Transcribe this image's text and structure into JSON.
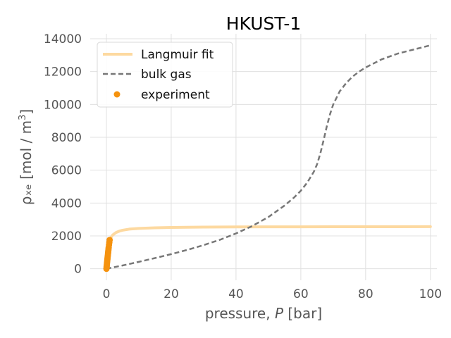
{
  "chart_data": {
    "type": "line",
    "title": "HKUST-1",
    "xlabel_pre": "pressure, ",
    "xlabel_var": "P",
    "xlabel_post": " [bar]",
    "ylabel_main": "ρₓₑ [mol / m",
    "ylabel_sup": "3",
    "ylabel_post": "]",
    "xlim": [
      -5,
      102
    ],
    "ylim": [
      -700,
      14300
    ],
    "xticks": [
      0,
      20,
      40,
      60,
      80,
      100
    ],
    "yticks": [
      0,
      2000,
      4000,
      6000,
      8000,
      10000,
      12000,
      14000
    ],
    "grid": true,
    "legend_position": "top-left",
    "series": [
      {
        "name": "Langmuir fit",
        "kind": "line",
        "color": "#fdd9a0",
        "x": [
          0,
          0.25,
          0.5,
          0.75,
          1,
          1.5,
          2,
          3,
          4,
          5,
          7,
          10,
          15,
          20,
          30,
          40,
          50,
          60,
          70,
          80,
          90,
          100
        ],
        "y": [
          0,
          860,
          1290,
          1545,
          1720,
          1935,
          2065,
          2210,
          2290,
          2345,
          2410,
          2455,
          2495,
          2515,
          2535,
          2545,
          2550,
          2553,
          2556,
          2558,
          2559,
          2560
        ]
      },
      {
        "name": "bulk gas",
        "kind": "dashed",
        "color": "#777777",
        "x": [
          0,
          5,
          10,
          15,
          20,
          25,
          30,
          35,
          40,
          45,
          50,
          55,
          58,
          60,
          62,
          64,
          65,
          66,
          67,
          68,
          69,
          70,
          72,
          74,
          76,
          78,
          80,
          85,
          90,
          95,
          100
        ],
        "y": [
          0,
          200,
          420,
          650,
          890,
          1150,
          1440,
          1760,
          2150,
          2600,
          3150,
          3850,
          4350,
          4750,
          5250,
          5900,
          6350,
          7000,
          7800,
          8650,
          9400,
          10000,
          10800,
          11300,
          11700,
          12000,
          12250,
          12750,
          13100,
          13350,
          13600
        ]
      },
      {
        "name": "experiment",
        "kind": "scatter",
        "color": "#f5920e",
        "x": [
          0.02,
          0.05,
          0.08,
          0.12,
          0.16,
          0.2,
          0.25,
          0.3,
          0.35,
          0.4,
          0.45,
          0.5,
          0.55,
          0.6,
          0.65,
          0.7,
          0.8,
          0.9,
          1.0
        ],
        "y": [
          0,
          60,
          130,
          210,
          290,
          380,
          470,
          560,
          650,
          740,
          830,
          920,
          1010,
          1100,
          1200,
          1300,
          1450,
          1600,
          1750
        ]
      }
    ]
  }
}
